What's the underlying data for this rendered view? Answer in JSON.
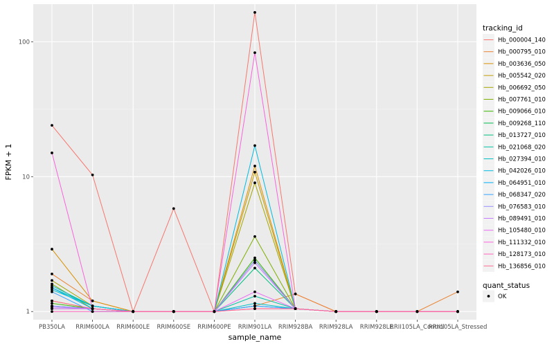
{
  "chart_data": {
    "type": "line",
    "xlabel": "sample_name",
    "ylabel": "FPKM + 1",
    "y_scale": "log10",
    "ylim": [
      0.87,
      190
    ],
    "grid": true,
    "legend_position": "right",
    "y_ticks": [
      {
        "value": 1,
        "label": "1"
      },
      {
        "value": 10,
        "label": "10"
      },
      {
        "value": 100,
        "label": "100"
      }
    ],
    "categories": [
      "PB350LA",
      "RRIM600LA",
      "RRIM600LE",
      "RRIM600SE",
      "RRIM600PE",
      "RRIM901LA",
      "RRIM928BA",
      "RRIM928LA",
      "RRIM928LE",
      "RRII105LA_Control",
      "RRII105LA_Stressed"
    ],
    "legend_title": "tracking_id",
    "series": [
      {
        "name": "Hb_000004_140",
        "color": "#F8766D",
        "values": [
          24,
          10.3,
          1,
          5.8,
          1,
          165,
          1.35,
          1,
          1,
          1,
          1
        ]
      },
      {
        "name": "Hb_000795_010",
        "color": "#EA8331",
        "values": [
          1.9,
          1.2,
          1,
          1,
          1,
          1.1,
          1.35,
          1,
          1,
          1,
          1.4
        ]
      },
      {
        "name": "Hb_003636_050",
        "color": "#D89000",
        "values": [
          2.9,
          1.2,
          1,
          1,
          1,
          12,
          1.05,
          1,
          1,
          1,
          1
        ]
      },
      {
        "name": "Hb_005542_020",
        "color": "#C09B00",
        "values": [
          1.2,
          1.05,
          1,
          1,
          1,
          10.8,
          1.05,
          1,
          1,
          1,
          1
        ]
      },
      {
        "name": "Hb_006692_050",
        "color": "#A3A500",
        "values": [
          1.7,
          1.1,
          1,
          1,
          1,
          9,
          1.05,
          1,
          1,
          1,
          1
        ]
      },
      {
        "name": "Hb_007761_010",
        "color": "#7CAE00",
        "values": [
          1.6,
          1.05,
          1,
          1,
          1,
          3.6,
          1.05,
          1,
          1,
          1,
          1
        ]
      },
      {
        "name": "Hb_009066_010",
        "color": "#39B600",
        "values": [
          1.15,
          1.05,
          1,
          1,
          1,
          2.5,
          1.05,
          1,
          1,
          1,
          1
        ]
      },
      {
        "name": "Hb_009268_110",
        "color": "#00BB4E",
        "values": [
          1.1,
          1.05,
          1,
          1,
          1,
          2.4,
          1.05,
          1,
          1,
          1,
          1
        ]
      },
      {
        "name": "Hb_013727_010",
        "color": "#00BF7D",
        "values": [
          1.05,
          1.05,
          1,
          1,
          1,
          2.1,
          1.05,
          1,
          1,
          1,
          1
        ]
      },
      {
        "name": "Hb_021068_020",
        "color": "#00C1A3",
        "values": [
          1.5,
          1.1,
          1,
          1,
          1,
          1.3,
          1.05,
          1,
          1,
          1,
          1
        ]
      },
      {
        "name": "Hb_027394_010",
        "color": "#00BFC4",
        "values": [
          1.45,
          1.1,
          1,
          1,
          1,
          1.15,
          1.05,
          1,
          1,
          1,
          1
        ]
      },
      {
        "name": "Hb_042026_010",
        "color": "#00BAE0",
        "values": [
          1.55,
          1.1,
          1,
          1,
          1,
          17,
          1.05,
          1,
          1,
          1,
          1
        ]
      },
      {
        "name": "Hb_064951_010",
        "color": "#00B0F6",
        "values": [
          1.5,
          1.05,
          1,
          1,
          1,
          1.1,
          1.05,
          1,
          1,
          1,
          1
        ]
      },
      {
        "name": "Hb_068347_020",
        "color": "#35A2FF",
        "values": [
          1.4,
          1.0,
          1,
          1,
          1,
          1.1,
          1.05,
          1,
          1,
          1,
          1
        ]
      },
      {
        "name": "Hb_076583_010",
        "color": "#9590FF",
        "values": [
          1.1,
          1.05,
          1,
          1,
          1,
          2.4,
          1.05,
          1,
          1,
          1,
          1
        ]
      },
      {
        "name": "Hb_089491_010",
        "color": "#C77CFF",
        "values": [
          1.08,
          1.05,
          1,
          1,
          1,
          2.3,
          1.05,
          1,
          1,
          1,
          1
        ]
      },
      {
        "name": "Hb_105480_010",
        "color": "#E76BF3",
        "values": [
          1.05,
          1.05,
          1,
          1,
          1,
          1.4,
          1.05,
          1,
          1,
          1,
          1
        ]
      },
      {
        "name": "Hb_111332_010",
        "color": "#FA62DB",
        "values": [
          15,
          1.05,
          1,
          1,
          1,
          83,
          1.05,
          1,
          1,
          1,
          1
        ]
      },
      {
        "name": "Hb_128173_010",
        "color": "#FF62BC",
        "values": [
          1.0,
          1.0,
          1,
          1,
          1,
          1.05,
          1.05,
          1,
          1,
          1,
          1
        ]
      },
      {
        "name": "Hb_136856_010",
        "color": "#FF6C91",
        "values": [
          1.2,
          1.05,
          1,
          1,
          1,
          1.05,
          1.05,
          1,
          1,
          1,
          1
        ]
      }
    ],
    "quant_status_legend": {
      "title": "quant_status",
      "items": [
        "OK"
      ]
    }
  }
}
